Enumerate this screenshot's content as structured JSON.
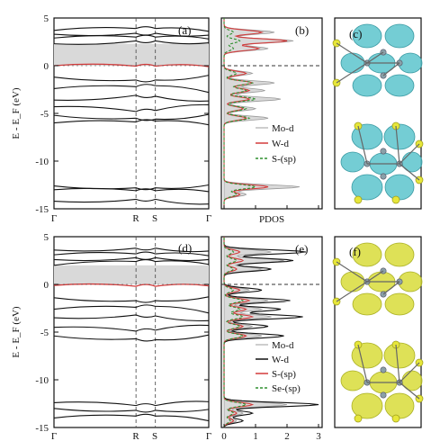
{
  "chart_data": [
    {
      "id": "a",
      "panel_label": "(a)",
      "type": "line",
      "ylabel": "E - E_F (eV)",
      "ylim": [
        -15,
        5
      ],
      "yticks": [
        5,
        0,
        -5,
        -10,
        -15
      ],
      "xticks": [
        "Γ",
        "R",
        "S",
        "Γ"
      ],
      "gap_region": [
        0.0,
        2.3
      ],
      "series": [
        {
          "color": "#d23b3b",
          "y_at_ticks": [
            0.0,
            -0.05,
            -0.05,
            -0.1
          ]
        },
        {
          "color": "#111111",
          "y_at_ticks": [
            -1.2,
            -1.5,
            -1.5,
            -1.0
          ]
        },
        {
          "color": "#111111",
          "y_at_ticks": [
            -2.4,
            -2.2,
            -2.1,
            -2.8
          ]
        },
        {
          "color": "#111111",
          "y_at_ticks": [
            -3.6,
            -3.1,
            -3.2,
            -3.7
          ]
        },
        {
          "color": "#111111",
          "y_at_ticks": [
            -4.3,
            -4.8,
            -4.7,
            -4.1
          ]
        },
        {
          "color": "#111111",
          "y_at_ticks": [
            -5.2,
            -5.5,
            -5.6,
            -5.1
          ]
        },
        {
          "color": "#111111",
          "y_at_ticks": [
            -6.0,
            -5.9,
            -5.8,
            -6.2
          ]
        },
        {
          "color": "#111111",
          "y_at_ticks": [
            2.3,
            2.6,
            2.6,
            2.4
          ]
        },
        {
          "color": "#111111",
          "y_at_ticks": [
            2.9,
            3.0,
            3.0,
            2.8
          ]
        },
        {
          "color": "#111111",
          "y_at_ticks": [
            3.3,
            3.4,
            3.4,
            3.2
          ]
        },
        {
          "color": "#111111",
          "y_at_ticks": [
            3.7,
            3.9,
            3.9,
            3.6
          ]
        },
        {
          "color": "#111111",
          "y_at_ticks": [
            -12.6,
            -12.8,
            -12.8,
            -12.5
          ]
        },
        {
          "color": "#111111",
          "y_at_ticks": [
            -13.0,
            -13.1,
            -13.1,
            -13.2
          ]
        },
        {
          "color": "#111111",
          "y_at_ticks": [
            -14.2,
            -14.0,
            -14.0,
            -14.5
          ]
        }
      ]
    },
    {
      "id": "b",
      "panel_label": "(b)",
      "type": "area",
      "xlabel": "PDOS",
      "ylim": [
        -15,
        5
      ],
      "legend": [
        {
          "label": "Mo-d",
          "color": "#bdbdbd"
        },
        {
          "label": "W-d",
          "color": "#d23b3b"
        },
        {
          "label": "S-(sp)",
          "color": "#2f8f2f"
        }
      ],
      "peaks": [
        {
          "y": 3.5,
          "values": [
            1.6,
            1.2,
            0.3
          ]
        },
        {
          "y": 2.6,
          "values": [
            2.2,
            2.0,
            0.5
          ]
        },
        {
          "y": 1.8,
          "values": [
            1.4,
            1.1,
            0.3
          ]
        },
        {
          "y": -0.8,
          "values": [
            0.9,
            0.7,
            0.4
          ]
        },
        {
          "y": -1.8,
          "values": [
            1.6,
            0.9,
            0.9
          ]
        },
        {
          "y": -2.6,
          "values": [
            1.3,
            0.8,
            0.7
          ]
        },
        {
          "y": -3.5,
          "values": [
            1.8,
            0.8,
            1.0
          ]
        },
        {
          "y": -4.5,
          "values": [
            1.0,
            0.6,
            0.7
          ]
        },
        {
          "y": -5.5,
          "values": [
            1.4,
            0.7,
            0.8
          ]
        },
        {
          "y": -12.7,
          "values": [
            2.4,
            1.4,
            1.0
          ]
        },
        {
          "y": -13.5,
          "values": [
            0.7,
            0.5,
            0.4
          ]
        }
      ]
    },
    {
      "id": "d",
      "panel_label": "(d)",
      "type": "line",
      "ylabel": "E - E_F (eV)",
      "ylim": [
        -15,
        5
      ],
      "yticks": [
        5,
        0,
        -5,
        -10,
        -15
      ],
      "xticks": [
        "Γ",
        "R",
        "S",
        "Γ"
      ],
      "gap_region": [
        0.0,
        2.0
      ],
      "series": [
        {
          "color": "#d23b3b",
          "y_at_ticks": [
            -0.1,
            -0.2,
            -0.2,
            -0.15
          ]
        },
        {
          "color": "#111111",
          "y_at_ticks": [
            -1.4,
            -1.7,
            -1.7,
            -1.3
          ]
        },
        {
          "color": "#111111",
          "y_at_ticks": [
            -2.6,
            -2.4,
            -2.3,
            -3.0
          ]
        },
        {
          "color": "#111111",
          "y_at_ticks": [
            -3.5,
            -3.2,
            -3.3,
            -3.8
          ]
        },
        {
          "color": "#111111",
          "y_at_ticks": [
            -4.5,
            -4.9,
            -4.8,
            -4.3
          ]
        },
        {
          "color": "#111111",
          "y_at_ticks": [
            -5.4,
            -5.7,
            -5.8,
            -5.3
          ]
        },
        {
          "color": "#111111",
          "y_at_ticks": [
            2.0,
            2.4,
            2.4,
            2.1
          ]
        },
        {
          "color": "#111111",
          "y_at_ticks": [
            2.6,
            2.8,
            2.8,
            2.6
          ]
        },
        {
          "color": "#111111",
          "y_at_ticks": [
            3.1,
            3.2,
            3.2,
            3.0
          ]
        },
        {
          "color": "#111111",
          "y_at_ticks": [
            3.6,
            3.8,
            3.8,
            3.5
          ]
        },
        {
          "color": "#111111",
          "y_at_ticks": [
            -12.4,
            -12.7,
            -12.7,
            -12.3
          ]
        },
        {
          "color": "#111111",
          "y_at_ticks": [
            -13.0,
            -13.2,
            -13.2,
            -13.1
          ]
        },
        {
          "color": "#111111",
          "y_at_ticks": [
            -14.0,
            -13.8,
            -13.8,
            -14.3
          ]
        }
      ]
    },
    {
      "id": "e",
      "panel_label": "(e)",
      "type": "area",
      "ylim": [
        -15,
        5
      ],
      "xlim": [
        0,
        3
      ],
      "xticks": [
        0,
        1,
        2,
        3
      ],
      "legend": [
        {
          "label": "Mo-d",
          "color": "#bdbdbd"
        },
        {
          "label": "W-d",
          "color": "#111111"
        },
        {
          "label": "S-(sp)",
          "color": "#d23b3b"
        },
        {
          "label": "Se-(sp)",
          "color": "#2f8f2f"
        }
      ],
      "peaks": [
        {
          "y": 3.4,
          "values": [
            1.5,
            2.6,
            0.5,
            0.3
          ]
        },
        {
          "y": 2.5,
          "values": [
            1.9,
            2.2,
            0.6,
            0.4
          ]
        },
        {
          "y": 1.6,
          "values": [
            1.2,
            1.5,
            0.4,
            0.3
          ]
        },
        {
          "y": -0.6,
          "values": [
            0.8,
            1.2,
            0.5,
            0.3
          ]
        },
        {
          "y": -1.7,
          "values": [
            1.4,
            2.1,
            0.8,
            0.6
          ]
        },
        {
          "y": -2.6,
          "values": [
            1.2,
            1.8,
            0.7,
            0.5
          ]
        },
        {
          "y": -3.4,
          "values": [
            1.5,
            2.5,
            0.9,
            0.6
          ]
        },
        {
          "y": -4.4,
          "values": [
            0.9,
            1.4,
            0.6,
            0.5
          ]
        },
        {
          "y": -5.4,
          "values": [
            1.2,
            1.9,
            0.7,
            0.6
          ]
        },
        {
          "y": -12.6,
          "values": [
            2.0,
            3.0,
            0.9,
            0.7
          ]
        },
        {
          "y": -13.5,
          "values": [
            0.6,
            0.9,
            0.4,
            0.3
          ]
        },
        {
          "y": -14.3,
          "values": [
            0.4,
            0.6,
            0.3,
            0.2
          ]
        }
      ]
    }
  ],
  "structure_panels": [
    {
      "id": "c",
      "panel_label": "(c)",
      "lobe_color": "#5cc4cc",
      "lobe_edge": "#3a9aa3"
    },
    {
      "id": "f",
      "panel_label": "(f)",
      "lobe_color": "#d8dc3a",
      "lobe_edge": "#aab023"
    }
  ]
}
